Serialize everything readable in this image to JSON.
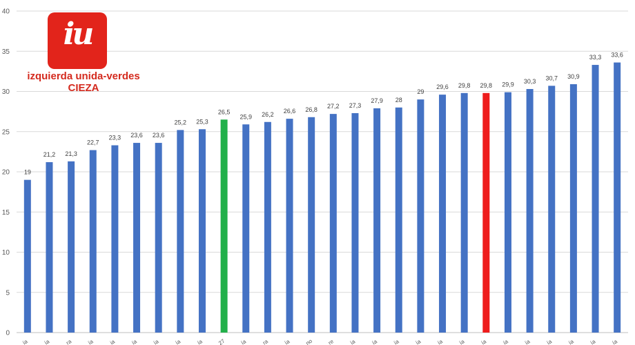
{
  "logo": {
    "mark": "iu",
    "line1": "izquierda unida-verdes",
    "line2": "CIEZA",
    "color": "#e2241b"
  },
  "chart_data": {
    "type": "bar",
    "title": "",
    "xlabel": "",
    "ylabel": "",
    "ylim": [
      0,
      40
    ],
    "yticks": [
      0,
      5,
      10,
      15,
      20,
      25,
      30,
      35,
      40
    ],
    "grid": true,
    "categories": [
      "ía",
      "ía",
      "ra",
      "ía",
      "ia",
      "ía",
      "ía",
      "ía",
      "ía",
      "27",
      "ía",
      "ra",
      "ía",
      "no",
      "re",
      "ía",
      "ía",
      "ía",
      "ía",
      "ía",
      "ía",
      "ía",
      "ía",
      "ía",
      "ía",
      "ía",
      "ía",
      "ía"
    ],
    "values": [
      19,
      21.2,
      21.3,
      22.7,
      23.3,
      23.6,
      23.6,
      25.2,
      25.3,
      26.5,
      25.9,
      26.2,
      26.6,
      26.8,
      27.2,
      27.3,
      27.9,
      28,
      29,
      29.6,
      29.8,
      29.8,
      29.9,
      30.3,
      30.7,
      30.9,
      33.3,
      33.6
    ],
    "value_labels": [
      "19",
      "21,2",
      "21,3",
      "22,7",
      "23,3",
      "23,6",
      "23,6",
      "25,2",
      "25,3",
      "26,5",
      "25,9",
      "26,2",
      "26,6",
      "26,8",
      "27,2",
      "27,3",
      "27,9",
      "28",
      "29",
      "29,6",
      "29,8",
      "29,8",
      "29,9",
      "30,3",
      "30,7",
      "30,9",
      "33,3",
      "33,6"
    ],
    "colors": [
      "#4472c4",
      "#4472c4",
      "#4472c4",
      "#4472c4",
      "#4472c4",
      "#4472c4",
      "#4472c4",
      "#4472c4",
      "#4472c4",
      "#22b04a",
      "#4472c4",
      "#4472c4",
      "#4472c4",
      "#4472c4",
      "#4472c4",
      "#4472c4",
      "#4472c4",
      "#4472c4",
      "#4472c4",
      "#4472c4",
      "#4472c4",
      "#ee1c1c",
      "#4472c4",
      "#4472c4",
      "#4472c4",
      "#4472c4",
      "#4472c4",
      "#4472c4"
    ]
  }
}
